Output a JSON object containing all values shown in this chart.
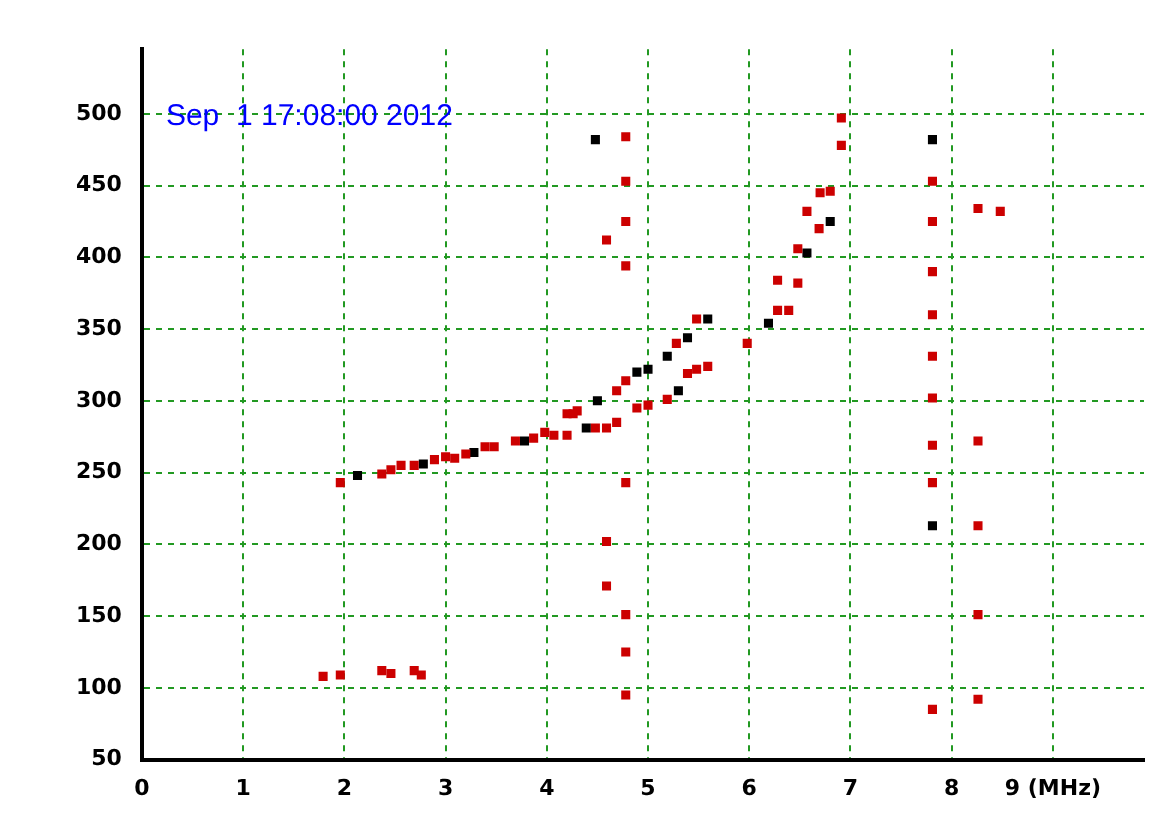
{
  "chart_data": {
    "type": "scatter",
    "annotations": [
      "Sep  1 17:08:00 2012"
    ],
    "series": [
      {
        "color": "#cc0000",
        "x": [
          1.96,
          2.37,
          2.46,
          2.56,
          2.69,
          2.89,
          3.0,
          3.09,
          3.2,
          3.39,
          3.48,
          3.69,
          3.87,
          3.98,
          4.07,
          4.2,
          4.2,
          4.3,
          4.48,
          4.26,
          4.59,
          4.69,
          4.69,
          4.78,
          4.89,
          5.0,
          5.19,
          5.28,
          5.39,
          5.48,
          5.48,
          5.59,
          5.98,
          6.28,
          6.28,
          6.39,
          6.48,
          6.48,
          6.57,
          6.69,
          6.7,
          6.8,
          6.91,
          6.91,
          1.79,
          1.96,
          2.37,
          2.46,
          2.69,
          2.76,
          4.59,
          4.59,
          4.59,
          4.78,
          4.78,
          4.78,
          4.78,
          4.78,
          4.78,
          4.78,
          4.78,
          7.81,
          7.81,
          7.81,
          7.81,
          7.81,
          7.81,
          7.81,
          7.81,
          7.81,
          8.26,
          8.26,
          8.26,
          8.26,
          8.26,
          8.48
        ],
        "values": [
          243,
          249,
          252,
          255,
          255,
          259,
          261,
          260,
          263,
          268,
          268,
          272,
          274,
          278,
          276,
          276,
          291,
          293,
          281,
          291,
          281,
          307,
          285,
          314,
          295,
          297,
          301,
          340,
          319,
          357,
          322,
          324,
          340,
          363,
          384,
          363,
          382,
          406,
          432,
          420,
          445,
          446,
          478,
          497,
          108,
          109,
          112,
          110,
          112,
          109,
          412,
          202,
          171,
          484,
          453,
          425,
          394,
          243,
          151,
          125,
          95,
          453,
          425,
          390,
          360,
          331,
          302,
          269,
          243,
          85,
          434,
          272,
          213,
          151,
          92,
          432
        ]
      },
      {
        "color": "#000000",
        "x": [
          2.13,
          2.78,
          3.28,
          3.78,
          4.39,
          4.5,
          4.48,
          4.89,
          5.0,
          5.19,
          5.3,
          5.39,
          5.59,
          6.19,
          6.57,
          6.8,
          7.81,
          7.81
        ],
        "values": [
          248,
          256,
          264,
          272,
          281,
          300,
          482,
          320,
          322,
          331,
          307,
          344,
          357,
          354,
          403,
          425,
          482,
          213
        ]
      }
    ],
    "xlim": [
      0,
      9.9
    ],
    "xticks": [
      0,
      1,
      2,
      3,
      4,
      5,
      6,
      7,
      8,
      {
        "value": 9,
        "label": "9 (MHz)"
      }
    ],
    "ylim": [
      50,
      545
    ],
    "yticks": [
      50,
      100,
      150,
      200,
      250,
      300,
      350,
      400,
      450,
      500
    ],
    "grid": true,
    "legend": false,
    "marker": "square"
  }
}
